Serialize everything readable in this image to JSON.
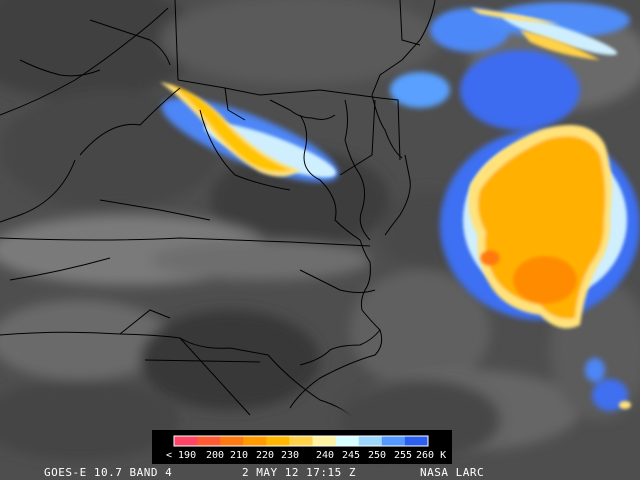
{
  "caption": {
    "satellite": "GOES-E 10.7 BAND 4",
    "timestamp": "2 MAY 12 17:15 Z",
    "credit": "NASA LARC"
  },
  "legend": {
    "labels": [
      "< 190",
      "200",
      "210",
      "220",
      "230",
      "240",
      "245",
      "250",
      "255",
      "260 K"
    ],
    "colors": [
      "#ff4466",
      "#ff5a33",
      "#ff7a10",
      "#ff9a00",
      "#ffb800",
      "#ffd24a",
      "#fff2a0",
      "#d8ffff",
      "#9fd8ff",
      "#5599ff",
      "#2c5ff0"
    ]
  },
  "colors": {
    "background_cloud_gray": "#555555",
    "border_lines": "#000000"
  }
}
